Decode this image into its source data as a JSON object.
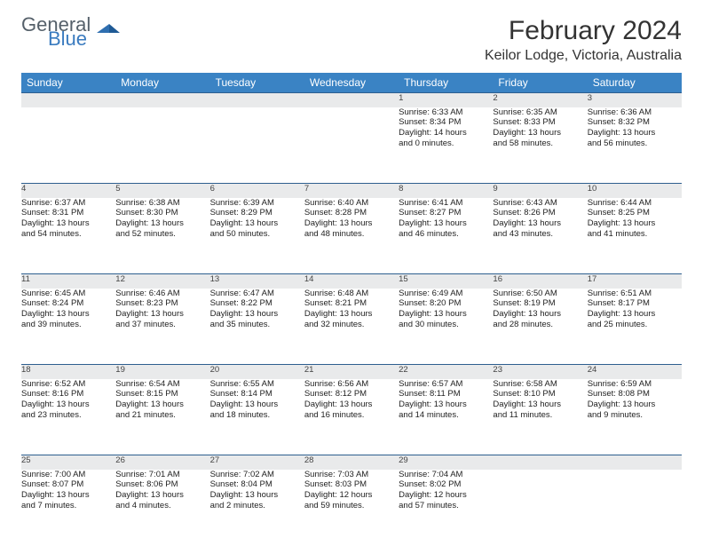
{
  "brand": {
    "general": "General",
    "blue": "Blue"
  },
  "title": "February 2024",
  "location": "Keilor Lodge, Victoria, Australia",
  "colors": {
    "header_bg": "#3a83c4",
    "daynum_bg": "#e9eaeb",
    "row_border": "#2e5f8f"
  },
  "weekdays": [
    "Sunday",
    "Monday",
    "Tuesday",
    "Wednesday",
    "Thursday",
    "Friday",
    "Saturday"
  ],
  "weeks": [
    [
      null,
      null,
      null,
      null,
      {
        "n": "1",
        "sr": "Sunrise: 6:33 AM",
        "ss": "Sunset: 8:34 PM",
        "d1": "Daylight: 14 hours",
        "d2": "and 0 minutes."
      },
      {
        "n": "2",
        "sr": "Sunrise: 6:35 AM",
        "ss": "Sunset: 8:33 PM",
        "d1": "Daylight: 13 hours",
        "d2": "and 58 minutes."
      },
      {
        "n": "3",
        "sr": "Sunrise: 6:36 AM",
        "ss": "Sunset: 8:32 PM",
        "d1": "Daylight: 13 hours",
        "d2": "and 56 minutes."
      }
    ],
    [
      {
        "n": "4",
        "sr": "Sunrise: 6:37 AM",
        "ss": "Sunset: 8:31 PM",
        "d1": "Daylight: 13 hours",
        "d2": "and 54 minutes."
      },
      {
        "n": "5",
        "sr": "Sunrise: 6:38 AM",
        "ss": "Sunset: 8:30 PM",
        "d1": "Daylight: 13 hours",
        "d2": "and 52 minutes."
      },
      {
        "n": "6",
        "sr": "Sunrise: 6:39 AM",
        "ss": "Sunset: 8:29 PM",
        "d1": "Daylight: 13 hours",
        "d2": "and 50 minutes."
      },
      {
        "n": "7",
        "sr": "Sunrise: 6:40 AM",
        "ss": "Sunset: 8:28 PM",
        "d1": "Daylight: 13 hours",
        "d2": "and 48 minutes."
      },
      {
        "n": "8",
        "sr": "Sunrise: 6:41 AM",
        "ss": "Sunset: 8:27 PM",
        "d1": "Daylight: 13 hours",
        "d2": "and 46 minutes."
      },
      {
        "n": "9",
        "sr": "Sunrise: 6:43 AM",
        "ss": "Sunset: 8:26 PM",
        "d1": "Daylight: 13 hours",
        "d2": "and 43 minutes."
      },
      {
        "n": "10",
        "sr": "Sunrise: 6:44 AM",
        "ss": "Sunset: 8:25 PM",
        "d1": "Daylight: 13 hours",
        "d2": "and 41 minutes."
      }
    ],
    [
      {
        "n": "11",
        "sr": "Sunrise: 6:45 AM",
        "ss": "Sunset: 8:24 PM",
        "d1": "Daylight: 13 hours",
        "d2": "and 39 minutes."
      },
      {
        "n": "12",
        "sr": "Sunrise: 6:46 AM",
        "ss": "Sunset: 8:23 PM",
        "d1": "Daylight: 13 hours",
        "d2": "and 37 minutes."
      },
      {
        "n": "13",
        "sr": "Sunrise: 6:47 AM",
        "ss": "Sunset: 8:22 PM",
        "d1": "Daylight: 13 hours",
        "d2": "and 35 minutes."
      },
      {
        "n": "14",
        "sr": "Sunrise: 6:48 AM",
        "ss": "Sunset: 8:21 PM",
        "d1": "Daylight: 13 hours",
        "d2": "and 32 minutes."
      },
      {
        "n": "15",
        "sr": "Sunrise: 6:49 AM",
        "ss": "Sunset: 8:20 PM",
        "d1": "Daylight: 13 hours",
        "d2": "and 30 minutes."
      },
      {
        "n": "16",
        "sr": "Sunrise: 6:50 AM",
        "ss": "Sunset: 8:19 PM",
        "d1": "Daylight: 13 hours",
        "d2": "and 28 minutes."
      },
      {
        "n": "17",
        "sr": "Sunrise: 6:51 AM",
        "ss": "Sunset: 8:17 PM",
        "d1": "Daylight: 13 hours",
        "d2": "and 25 minutes."
      }
    ],
    [
      {
        "n": "18",
        "sr": "Sunrise: 6:52 AM",
        "ss": "Sunset: 8:16 PM",
        "d1": "Daylight: 13 hours",
        "d2": "and 23 minutes."
      },
      {
        "n": "19",
        "sr": "Sunrise: 6:54 AM",
        "ss": "Sunset: 8:15 PM",
        "d1": "Daylight: 13 hours",
        "d2": "and 21 minutes."
      },
      {
        "n": "20",
        "sr": "Sunrise: 6:55 AM",
        "ss": "Sunset: 8:14 PM",
        "d1": "Daylight: 13 hours",
        "d2": "and 18 minutes."
      },
      {
        "n": "21",
        "sr": "Sunrise: 6:56 AM",
        "ss": "Sunset: 8:12 PM",
        "d1": "Daylight: 13 hours",
        "d2": "and 16 minutes."
      },
      {
        "n": "22",
        "sr": "Sunrise: 6:57 AM",
        "ss": "Sunset: 8:11 PM",
        "d1": "Daylight: 13 hours",
        "d2": "and 14 minutes."
      },
      {
        "n": "23",
        "sr": "Sunrise: 6:58 AM",
        "ss": "Sunset: 8:10 PM",
        "d1": "Daylight: 13 hours",
        "d2": "and 11 minutes."
      },
      {
        "n": "24",
        "sr": "Sunrise: 6:59 AM",
        "ss": "Sunset: 8:08 PM",
        "d1": "Daylight: 13 hours",
        "d2": "and 9 minutes."
      }
    ],
    [
      {
        "n": "25",
        "sr": "Sunrise: 7:00 AM",
        "ss": "Sunset: 8:07 PM",
        "d1": "Daylight: 13 hours",
        "d2": "and 7 minutes."
      },
      {
        "n": "26",
        "sr": "Sunrise: 7:01 AM",
        "ss": "Sunset: 8:06 PM",
        "d1": "Daylight: 13 hours",
        "d2": "and 4 minutes."
      },
      {
        "n": "27",
        "sr": "Sunrise: 7:02 AM",
        "ss": "Sunset: 8:04 PM",
        "d1": "Daylight: 13 hours",
        "d2": "and 2 minutes."
      },
      {
        "n": "28",
        "sr": "Sunrise: 7:03 AM",
        "ss": "Sunset: 8:03 PM",
        "d1": "Daylight: 12 hours",
        "d2": "and 59 minutes."
      },
      {
        "n": "29",
        "sr": "Sunrise: 7:04 AM",
        "ss": "Sunset: 8:02 PM",
        "d1": "Daylight: 12 hours",
        "d2": "and 57 minutes."
      },
      null,
      null
    ]
  ]
}
